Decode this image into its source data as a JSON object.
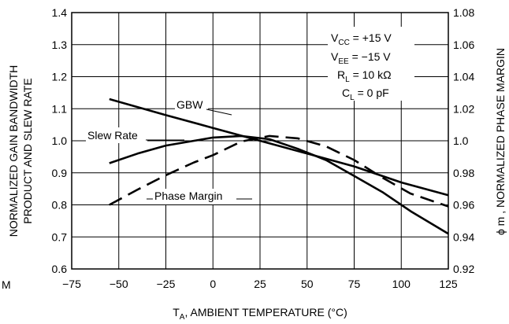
{
  "chart_data": {
    "type": "line",
    "title": "",
    "xlabel": "T_A, AMBIENT TEMPERATURE (°C)",
    "xlabel_parts": {
      "main": "T",
      "sub": "A",
      "rest": ", AMBIENT TEMPERATURE (°C)"
    },
    "ylabel_left_line1": "NORMALIZED GAIN BANDWIDTH",
    "ylabel_left_line2": "PRODUCT AND SLEW RATE",
    "ylabel_right": "ϕ m , NORMALIZED PHASE MARGIN",
    "xlim": [
      -75,
      125
    ],
    "ylim_left": [
      0.6,
      1.4
    ],
    "ylim_right": [
      0.92,
      1.08
    ],
    "x_ticks": [
      "−75",
      "−50",
      "−25",
      "0",
      "25",
      "50",
      "75",
      "100",
      "125"
    ],
    "x_tick_values": [
      -75,
      -50,
      -25,
      0,
      25,
      50,
      75,
      100,
      125
    ],
    "y_left_ticks": [
      "0.6",
      "0.7",
      "0.8",
      "0.9",
      "1.0",
      "1.1",
      "1.2",
      "1.3",
      "1.4"
    ],
    "y_left_values": [
      0.6,
      0.7,
      0.8,
      0.9,
      1.0,
      1.1,
      1.2,
      1.3,
      1.4
    ],
    "y_right_ticks": [
      "0.92",
      "0.94",
      "0.96",
      "0.98",
      "1.0",
      "1.02",
      "1.04",
      "1.06",
      "1.08"
    ],
    "y_right_values": [
      0.92,
      0.94,
      0.96,
      0.98,
      1.0,
      1.02,
      1.04,
      1.06,
      1.08
    ],
    "grid": true,
    "series": [
      {
        "name": "GBW",
        "axis": "left",
        "style": "solid",
        "x": [
          -55,
          -25,
          0,
          25,
          50,
          75,
          100,
          125
        ],
        "values": [
          1.13,
          1.08,
          1.04,
          1.0,
          0.96,
          0.92,
          0.87,
          0.83
        ]
      },
      {
        "name": "Slew Rate",
        "axis": "left",
        "style": "solid",
        "x": [
          -55,
          -40,
          -25,
          -10,
          0,
          15,
          30,
          45,
          60,
          75,
          90,
          105,
          125
        ],
        "values": [
          0.93,
          0.96,
          0.985,
          1.0,
          1.01,
          1.015,
          1.005,
          0.975,
          0.94,
          0.89,
          0.84,
          0.78,
          0.71
        ]
      },
      {
        "name": "Phase Margin",
        "axis": "right",
        "style": "dashed",
        "x": [
          -55,
          -40,
          -25,
          -10,
          0,
          15,
          30,
          45,
          60,
          75,
          90,
          105,
          125
        ],
        "values": [
          0.96,
          0.9695,
          0.9785,
          0.9865,
          0.991,
          0.9995,
          1.003,
          1.0015,
          0.9965,
          0.988,
          0.977,
          0.967,
          0.959
        ]
      }
    ],
    "series_labels": [
      "GBW",
      "Slew Rate",
      "Phase Margin"
    ],
    "conditions": {
      "vcc": {
        "main": "V",
        "sub": "CC",
        "rest": " = +15 V"
      },
      "vee": {
        "main": "V",
        "sub": "EE",
        "rest": " = −15 V"
      },
      "rl": {
        "main": "R",
        "sub": "L",
        "rest": " = 10 kΩ"
      },
      "cl": {
        "main": "C",
        "sub": "L",
        "rest": " = 0 pF"
      }
    }
  },
  "edge_glyph": "M"
}
